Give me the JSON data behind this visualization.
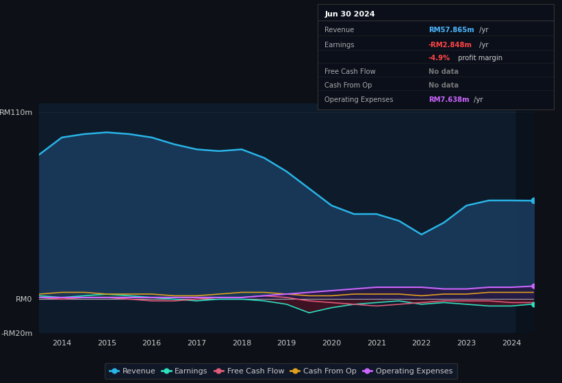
{
  "bg_color": "#0d1117",
  "plot_bg_color": "#0d1b2a",
  "grid_color": "#1e2d3d",
  "x_years": [
    2013.5,
    2014,
    2014.5,
    2015,
    2015.5,
    2016,
    2016.5,
    2017,
    2017.5,
    2018,
    2018.5,
    2019,
    2019.5,
    2020,
    2020.5,
    2021,
    2021.5,
    2022,
    2022.5,
    2023,
    2023.5,
    2024,
    2024.5
  ],
  "revenue": [
    85,
    95,
    97,
    98,
    97,
    95,
    91,
    88,
    87,
    88,
    83,
    75,
    65,
    55,
    50,
    50,
    46,
    38,
    45,
    55,
    58,
    58,
    57.865
  ],
  "earnings": [
    2,
    1,
    2,
    3,
    2,
    1,
    0,
    -1,
    0,
    0,
    -1,
    -3,
    -8,
    -5,
    -3,
    -2,
    -1,
    -3,
    -2,
    -3,
    -4,
    -4,
    -2.848
  ],
  "free_cash_flow": [
    1,
    0,
    1,
    1,
    0,
    -1,
    -1,
    0,
    1,
    1,
    2,
    1,
    -1,
    -2,
    -3,
    -4,
    -3,
    -2,
    -1,
    -1,
    -1,
    -2,
    -2
  ],
  "cash_from_op": [
    3,
    4,
    4,
    3,
    3,
    3,
    2,
    2,
    3,
    4,
    4,
    3,
    2,
    2,
    3,
    3,
    3,
    2,
    3,
    3,
    4,
    4,
    4
  ],
  "operating_expenses": [
    1,
    1,
    1,
    1,
    1,
    1,
    1,
    1,
    1,
    1,
    2,
    3,
    4,
    5,
    6,
    7,
    7,
    7,
    6,
    6,
    7,
    7,
    7.638
  ],
  "revenue_color": "#29b5e8",
  "earnings_color": "#2de0c0",
  "free_cash_flow_color": "#e05c7a",
  "cash_from_op_color": "#e0a020",
  "operating_expenses_color": "#cc66ff",
  "revenue_fill_color": "#1a3a5c",
  "ylim": [
    -20,
    115
  ],
  "ytick_vals": [
    -20,
    0,
    110
  ],
  "ytick_labels": [
    "-RM20m",
    "RM0",
    "RM110m"
  ],
  "xtick_years": [
    2014,
    2015,
    2016,
    2017,
    2018,
    2019,
    2020,
    2021,
    2022,
    2023,
    2024
  ],
  "legend_items": [
    {
      "label": "Revenue",
      "color": "#29b5e8"
    },
    {
      "label": "Earnings",
      "color": "#2de0c0"
    },
    {
      "label": "Free Cash Flow",
      "color": "#e05c7a"
    },
    {
      "label": "Cash From Op",
      "color": "#e0a020"
    },
    {
      "label": "Operating Expenses",
      "color": "#cc66ff"
    }
  ],
  "info_box": {
    "date": "Jun 30 2024",
    "rows": [
      {
        "label": "Revenue",
        "value": "RM57.865m",
        "value_color": "#4db8ff",
        "suffix": " /yr"
      },
      {
        "label": "Earnings",
        "value": "-RM2.848m",
        "value_color": "#ff4444",
        "suffix": " /yr"
      },
      {
        "label": "",
        "value": "-4.9%",
        "value_color": "#ff4444",
        "suffix": " profit margin"
      },
      {
        "label": "Free Cash Flow",
        "value": "No data",
        "value_color": "#777777",
        "suffix": ""
      },
      {
        "label": "Cash From Op",
        "value": "No data",
        "value_color": "#777777",
        "suffix": ""
      },
      {
        "label": "Operating Expenses",
        "value": "RM7.638m",
        "value_color": "#cc66ff",
        "suffix": " /yr"
      }
    ]
  }
}
